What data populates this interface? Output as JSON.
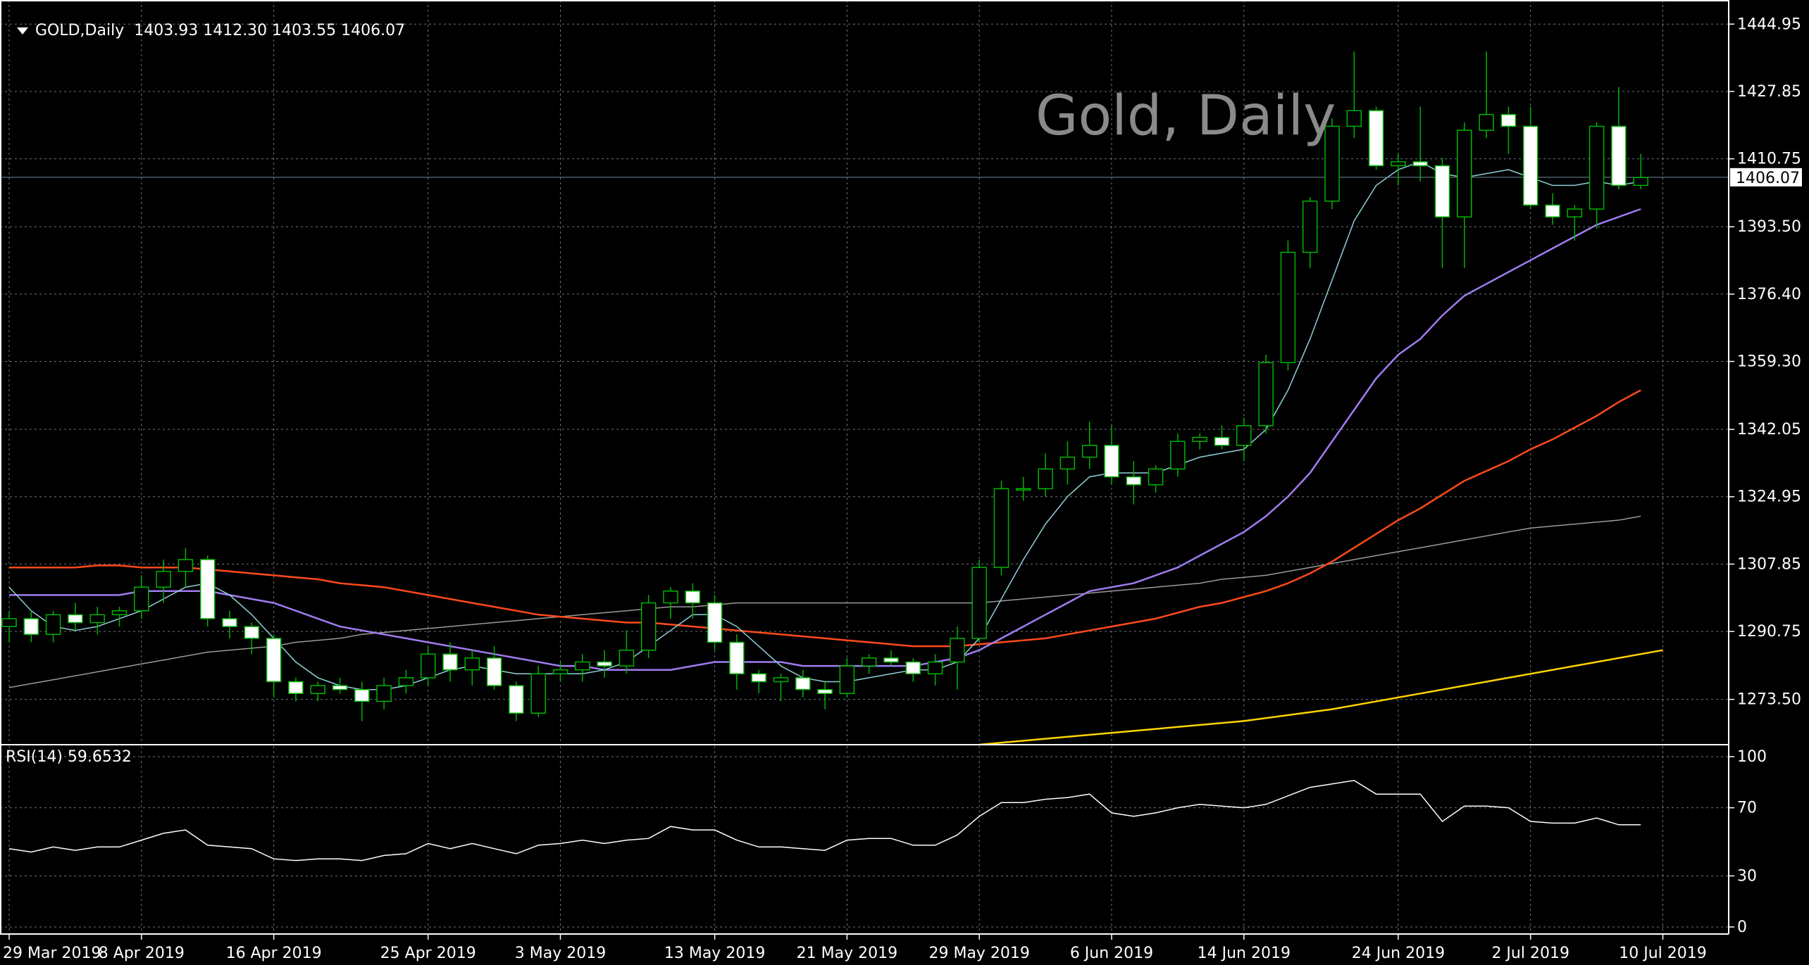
{
  "header": {
    "symbol": "GOLD,Daily",
    "ohlc": "1403.93 1412.30 1403.55 1406.07"
  },
  "watermark": "Gold, Daily",
  "rsi_header": "RSI(14) 59.6532",
  "current_price_label": "1406.07",
  "colors": {
    "background": "#000000",
    "grid": "#6f7480",
    "bull": "#00b400",
    "bear": "#ffffff",
    "ma_fast": "#8fd0d8",
    "ma_20": "#a07cf0",
    "ma_50": "#ff4a1a",
    "ma_100": "#9a9a9a",
    "ma_200": "#ffd400",
    "rsi": "#ffffff"
  },
  "chart_data": [
    {
      "type": "candlestick",
      "ylim": [
        1262,
        1450
      ],
      "y_ticks": [
        "1444.95",
        "1427.85",
        "1410.75",
        "1393.50",
        "1376.40",
        "1359.30",
        "1342.05",
        "1324.95",
        "1307.85",
        "1290.75",
        "1273.50"
      ],
      "x_tick_labels": [
        "29 Mar 2019",
        "8 Apr 2019",
        "16 Apr 2019",
        "25 Apr 2019",
        "3 May 2019",
        "13 May 2019",
        "21 May 2019",
        "29 May 2019",
        "6 Jun 2019",
        "14 Jun 2019",
        "24 Jun 2019",
        "2 Jul 2019",
        "10 Jul 2019"
      ],
      "x_tick_index": [
        0,
        6,
        12,
        19,
        25,
        32,
        38,
        44,
        50,
        56,
        63,
        69,
        75
      ],
      "current_price": 1406.07,
      "candles": [
        [
          1292,
          1296,
          1288,
          1294
        ],
        [
          1294,
          1296,
          1288,
          1290
        ],
        [
          1290,
          1296,
          1288,
          1295
        ],
        [
          1295,
          1298,
          1291,
          1293
        ],
        [
          1293,
          1297,
          1290,
          1295
        ],
        [
          1295,
          1297,
          1292,
          1296
        ],
        [
          1296,
          1305,
          1294,
          1302
        ],
        [
          1302,
          1309,
          1298,
          1306
        ],
        [
          1306,
          1312,
          1302,
          1309
        ],
        [
          1309,
          1310,
          1292,
          1294
        ],
        [
          1294,
          1296,
          1289,
          1292
        ],
        [
          1292,
          1293,
          1285,
          1289
        ],
        [
          1289,
          1290,
          1274,
          1278
        ],
        [
          1278,
          1279,
          1273,
          1275
        ],
        [
          1275,
          1278,
          1273,
          1277
        ],
        [
          1277,
          1279,
          1275,
          1276
        ],
        [
          1276,
          1278,
          1268,
          1273
        ],
        [
          1273,
          1279,
          1271,
          1277
        ],
        [
          1277,
          1281,
          1275,
          1279
        ],
        [
          1279,
          1287,
          1277,
          1285
        ],
        [
          1285,
          1288,
          1278,
          1281
        ],
        [
          1281,
          1286,
          1277,
          1284
        ],
        [
          1284,
          1287,
          1276,
          1277
        ],
        [
          1277,
          1278,
          1268,
          1270
        ],
        [
          1270,
          1282,
          1269,
          1280
        ],
        [
          1280,
          1283,
          1278,
          1281
        ],
        [
          1281,
          1285,
          1278,
          1283
        ],
        [
          1283,
          1286,
          1279,
          1282
        ],
        [
          1282,
          1291,
          1280,
          1286
        ],
        [
          1286,
          1300,
          1284,
          1298
        ],
        [
          1298,
          1302,
          1294,
          1301
        ],
        [
          1301,
          1303,
          1294,
          1298
        ],
        [
          1298,
          1300,
          1286,
          1288
        ],
        [
          1288,
          1290,
          1276,
          1280
        ],
        [
          1280,
          1281,
          1275,
          1278
        ],
        [
          1278,
          1280,
          1273,
          1279
        ],
        [
          1279,
          1281,
          1274,
          1276
        ],
        [
          1276,
          1278,
          1271,
          1275
        ],
        [
          1275,
          1284,
          1274,
          1282
        ],
        [
          1282,
          1285,
          1280,
          1284
        ],
        [
          1284,
          1286,
          1282,
          1283
        ],
        [
          1283,
          1284,
          1278,
          1280
        ],
        [
          1280,
          1285,
          1277,
          1283
        ],
        [
          1283,
          1292,
          1276,
          1289
        ],
        [
          1289,
          1309,
          1288,
          1307
        ],
        [
          1307,
          1329,
          1305,
          1327
        ],
        [
          1327,
          1330,
          1324,
          1327
        ],
        [
          1327,
          1336,
          1325,
          1332
        ],
        [
          1332,
          1339,
          1328,
          1335
        ],
        [
          1335,
          1344,
          1332,
          1338
        ],
        [
          1338,
          1343,
          1328,
          1330
        ],
        [
          1330,
          1334,
          1323,
          1328
        ],
        [
          1328,
          1333,
          1326,
          1332
        ],
        [
          1332,
          1341,
          1330,
          1339
        ],
        [
          1339,
          1341,
          1337,
          1340
        ],
        [
          1340,
          1343,
          1337,
          1338
        ],
        [
          1338,
          1345,
          1334,
          1343
        ],
        [
          1343,
          1361,
          1341,
          1359
        ],
        [
          1359,
          1390,
          1357,
          1387
        ],
        [
          1387,
          1401,
          1383,
          1400
        ],
        [
          1400,
          1421,
          1398,
          1419
        ],
        [
          1419,
          1438,
          1416,
          1423
        ],
        [
          1423,
          1424,
          1408,
          1409
        ],
        [
          1409,
          1412,
          1404,
          1410
        ],
        [
          1410,
          1424,
          1405,
          1409
        ],
        [
          1409,
          1411,
          1383,
          1396
        ],
        [
          1396,
          1420,
          1383,
          1418
        ],
        [
          1418,
          1438,
          1416,
          1422
        ],
        [
          1422,
          1424,
          1412,
          1419
        ],
        [
          1419,
          1424,
          1398,
          1399
        ],
        [
          1399,
          1402,
          1394,
          1396
        ],
        [
          1396,
          1399,
          1390,
          1398
        ],
        [
          1398,
          1420,
          1393,
          1419
        ],
        [
          1419,
          1429,
          1403,
          1404
        ],
        [
          1404,
          1412,
          1403,
          1406
        ]
      ],
      "ma_fast": [
        1302,
        1296,
        1292,
        1291,
        1292,
        1294,
        1296,
        1299,
        1302,
        1303,
        1300,
        1295,
        1289,
        1283,
        1279,
        1277,
        1276,
        1276,
        1277,
        1279,
        1281,
        1282,
        1281,
        1280,
        1280,
        1280,
        1280,
        1281,
        1283,
        1287,
        1291,
        1295,
        1295,
        1292,
        1287,
        1282,
        1279,
        1278,
        1278,
        1279,
        1280,
        1281,
        1281,
        1283,
        1289,
        1299,
        1309,
        1318,
        1325,
        1330,
        1331,
        1331,
        1331,
        1333,
        1335,
        1336,
        1337,
        1342,
        1352,
        1365,
        1380,
        1395,
        1404,
        1408,
        1410,
        1407,
        1406,
        1407,
        1408,
        1406,
        1404,
        1404,
        1405,
        1404,
        1405
      ],
      "ma_20": [
        1300,
        1300,
        1300,
        1300,
        1300,
        1300,
        1301,
        1301,
        1301,
        1301,
        1300,
        1299,
        1298,
        1296,
        1294,
        1292,
        1291,
        1290,
        1289,
        1288,
        1287,
        1286,
        1285,
        1284,
        1283,
        1282,
        1282,
        1281,
        1281,
        1281,
        1281,
        1282,
        1283,
        1283,
        1283,
        1283,
        1282,
        1282,
        1282,
        1282,
        1282,
        1282,
        1283,
        1284,
        1286,
        1289,
        1292,
        1295,
        1298,
        1301,
        1302,
        1303,
        1305,
        1307,
        1310,
        1313,
        1316,
        1320,
        1325,
        1331,
        1339,
        1347,
        1355,
        1361,
        1365,
        1371,
        1376,
        1379,
        1382,
        1385,
        1388,
        1391,
        1394,
        1396,
        1398
      ],
      "ma_50": [
        1307,
        1307,
        1307,
        1307,
        1307.5,
        1307.5,
        1307,
        1307,
        1307,
        1306.5,
        1306,
        1305.5,
        1305,
        1304.5,
        1304,
        1303,
        1302.5,
        1302,
        1301,
        1300,
        1299,
        1298,
        1297,
        1296,
        1295,
        1294.5,
        1294,
        1293.5,
        1293,
        1293,
        1292.5,
        1292,
        1291.5,
        1291,
        1290.5,
        1290,
        1289.5,
        1289,
        1288.5,
        1288,
        1287.5,
        1287,
        1287,
        1287,
        1287.5,
        1288,
        1288.5,
        1289,
        1290,
        1291,
        1292,
        1293,
        1294,
        1295.5,
        1297,
        1298,
        1299.5,
        1301,
        1303,
        1305.5,
        1308.5,
        1312,
        1315.5,
        1319,
        1322,
        1325.5,
        1329,
        1331.5,
        1334,
        1337,
        1339.5,
        1342.5,
        1345.5,
        1349,
        1352
      ],
      "ma_100": [
        1276.5,
        1277.5,
        1278.5,
        1279.5,
        1280.5,
        1281.5,
        1282.5,
        1283.5,
        1284.5,
        1285.5,
        1286,
        1286.5,
        1287,
        1288,
        1288.5,
        1289,
        1290,
        1290.5,
        1291,
        1291.5,
        1292,
        1292.5,
        1293,
        1293.5,
        1294,
        1294.5,
        1295,
        1295.5,
        1296,
        1296.5,
        1297,
        1297,
        1297.5,
        1298,
        1298,
        1298,
        1298,
        1298,
        1298,
        1298,
        1298,
        1298,
        1298,
        1298,
        1298,
        1298.5,
        1299,
        1299.5,
        1300,
        1300.5,
        1301,
        1301.5,
        1302,
        1302.5,
        1303,
        1304,
        1304.5,
        1305,
        1306,
        1307,
        1308,
        1309,
        1310,
        1311,
        1312,
        1313,
        1314,
        1315,
        1316,
        1317,
        1317.5,
        1318,
        1318.5,
        1319,
        1320
      ],
      "ma_200_x": [
        44,
        48,
        52,
        56,
        60,
        64,
        68,
        72,
        75
      ],
      "ma_200": [
        1262,
        1264,
        1266,
        1268,
        1271,
        1275,
        1279,
        1283,
        1286
      ]
    },
    {
      "type": "line",
      "name": "RSI(14)",
      "value": 59.6532,
      "ylim": [
        0,
        100
      ],
      "y_ticks": [
        100,
        70,
        30,
        0
      ],
      "values": [
        46,
        44,
        47,
        45,
        47,
        47,
        51,
        55,
        57,
        48,
        47,
        46,
        40,
        39,
        40,
        40,
        39,
        42,
        43,
        49,
        46,
        49,
        46,
        43,
        48,
        49,
        51,
        49,
        51,
        52,
        59,
        57,
        57,
        51,
        47,
        47,
        46,
        45,
        51,
        52,
        52,
        48,
        48,
        54,
        65,
        73,
        73,
        75,
        76,
        78,
        67,
        65,
        67,
        70,
        72,
        71,
        70,
        72,
        77,
        82,
        84,
        86,
        78,
        78,
        78,
        62,
        71,
        71,
        70,
        62,
        61,
        61,
        64,
        60,
        60
      ]
    }
  ]
}
